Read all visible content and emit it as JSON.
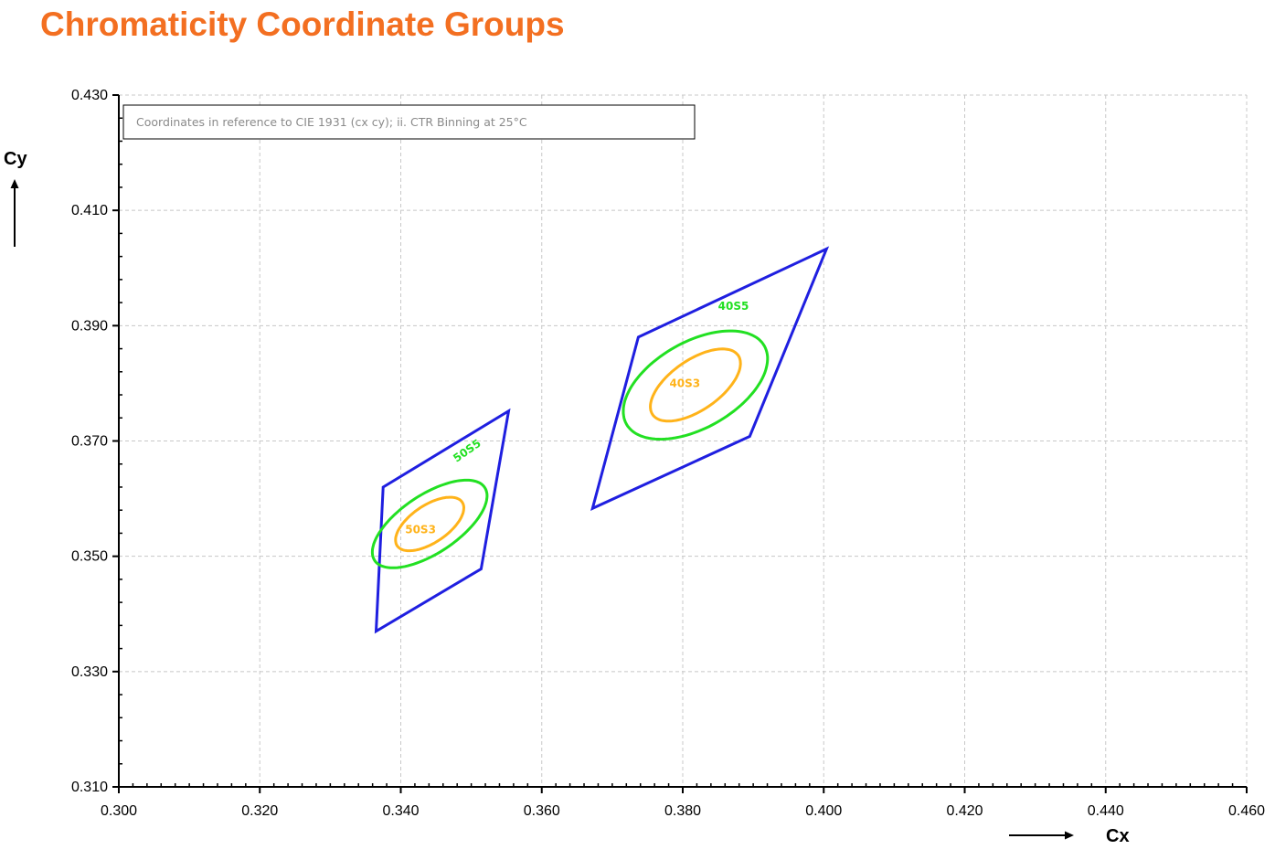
{
  "page": {
    "title": "Chromaticity Coordinate Groups"
  },
  "chart_data": {
    "type": "scatter",
    "xlabel": "Cx",
    "ylabel": "Cy",
    "xlim": [
      0.3,
      0.46
    ],
    "ylim": [
      0.31,
      0.43
    ],
    "x_ticks": [
      "0.300",
      "0.320",
      "0.340",
      "0.360",
      "0.380",
      "0.400",
      "0.420",
      "0.440",
      "0.460"
    ],
    "y_ticks": [
      "0.310",
      "0.330",
      "0.350",
      "0.370",
      "0.390",
      "0.410",
      "0.430"
    ],
    "grid": true,
    "note": "Coordinates in reference to CIE 1931 (cx cy); ii. CTR Binning at 25°C",
    "colors": {
      "quadrangle": "#1f1fe0",
      "ellipse_outer": "#22e022",
      "ellipse_inner": "#ffb31a",
      "axis": "#000000",
      "grid": "#c8c8c8"
    },
    "quadrangles": [
      {
        "points": [
          [
            0.3375,
            0.362
          ],
          [
            0.3553,
            0.3752
          ],
          [
            0.3514,
            0.3478
          ],
          [
            0.3365,
            0.337
          ]
        ]
      },
      {
        "points": [
          [
            0.3737,
            0.388
          ],
          [
            0.4004,
            0.4033
          ],
          [
            0.3895,
            0.3708
          ],
          [
            0.3672,
            0.3583
          ]
        ]
      }
    ],
    "ellipses": [
      {
        "label": "50S5",
        "color": "#22e022",
        "center": [
          0.3441,
          0.3556
        ],
        "a": 0.0101,
        "b": 0.0047,
        "angle_deg": 42,
        "label_pos": [
          0.3494,
          0.3683
        ],
        "label_rotate": -35
      },
      {
        "label": "50S3",
        "color": "#ffb31a",
        "center": [
          0.3441,
          0.3556
        ],
        "a": 0.006,
        "b": 0.003,
        "angle_deg": 43,
        "label_pos": [
          0.3428,
          0.3546
        ],
        "label_rotate": 0
      },
      {
        "label": "40S5",
        "color": "#22e022",
        "center": [
          0.3818,
          0.3797
        ],
        "a": 0.012,
        "b": 0.007,
        "angle_deg": 40,
        "label_pos": [
          0.3872,
          0.3934
        ],
        "label_rotate": 0
      },
      {
        "label": "40S3",
        "color": "#ffb31a",
        "center": [
          0.3818,
          0.3797
        ],
        "a": 0.008,
        "b": 0.004,
        "angle_deg": 44,
        "label_pos": [
          0.3803,
          0.38
        ],
        "label_rotate": 0
      }
    ]
  }
}
